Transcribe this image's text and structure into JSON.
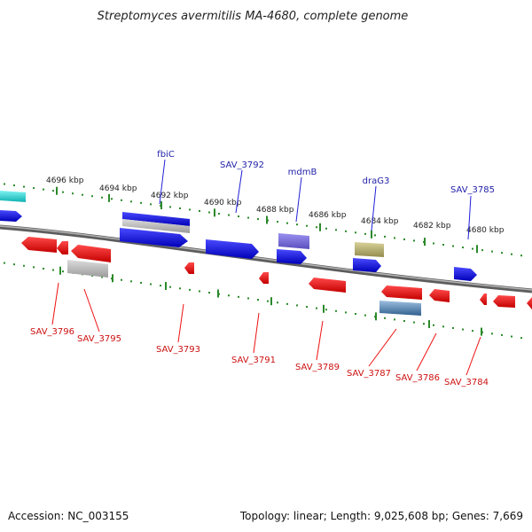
{
  "title": "Streptomyces avermitilis MA-4680, complete genome",
  "footer": {
    "accession": "Accession: NC_003155",
    "topology": "Topology: linear; Length: 9,025,608 bp; Genes: 7,669"
  },
  "colors": {
    "backbone": "#777777",
    "forward_gene": "#1f1fd6",
    "reverse_gene": "#ee1111",
    "top_label": "#1f1fa8",
    "bottom_label": "#cc1111",
    "tick": "#2a8a2a",
    "gray_feature": "#aaaaaa",
    "cyan_feature": "#17d0d0",
    "purple_feature": "#7b6fd6",
    "olive_feature": "#b5ad6a",
    "steel_feature": "#4f7fae"
  },
  "scale": {
    "labels": [
      "4696 kbp",
      "4694 kbp",
      "4692 kbp",
      "4690 kbp",
      "4688 kbp",
      "4686 kbp",
      "4684 kbp",
      "4682 kbp",
      "4680 kbp"
    ]
  },
  "top_labels": [
    "fbiC",
    "SAV_3792",
    "mdmB",
    "draG3",
    "SAV_3785"
  ],
  "bottom_labels": [
    "SAV_3796",
    "SAV_3795",
    "SAV_3793",
    "SAV_3791",
    "SAV_3789",
    "SAV_3787",
    "SAV_3786",
    "SAV_3784"
  ]
}
